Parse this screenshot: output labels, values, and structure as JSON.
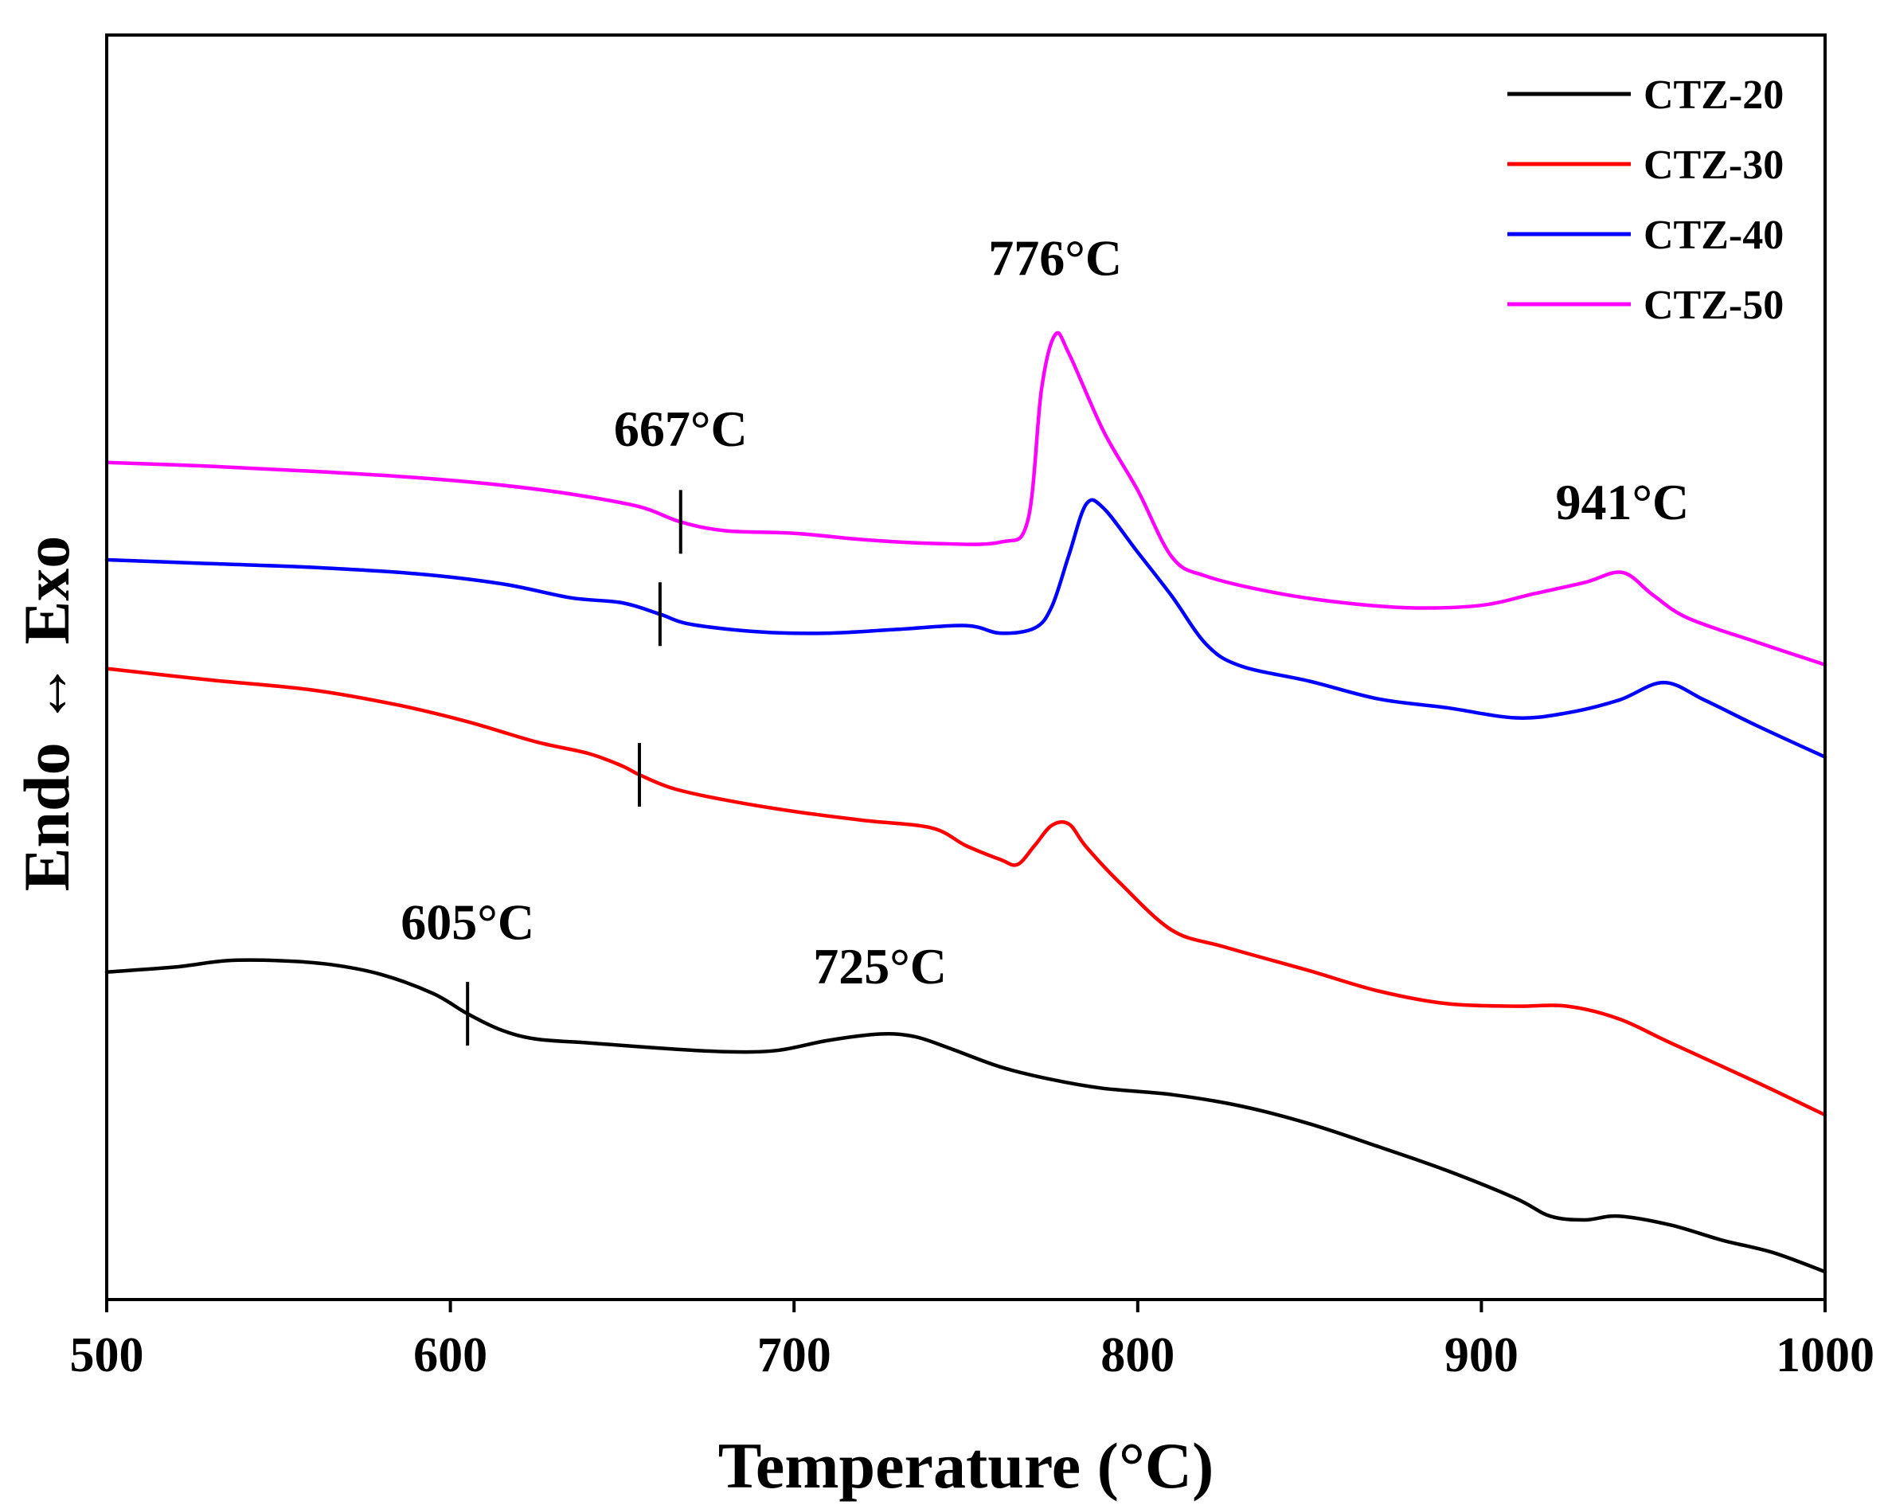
{
  "chart_data": {
    "type": "line",
    "title": "",
    "xlabel": "Temperature (°C)",
    "ylabel": "Endo ↔ Exo",
    "xlim": [
      500,
      1000
    ],
    "ylim": [
      0,
      100
    ],
    "xticks": [
      500,
      600,
      700,
      800,
      900,
      1000
    ],
    "xtick_labels": [
      "500",
      "600",
      "700",
      "800",
      "900",
      "1000"
    ],
    "yticks_visible": false,
    "grid": false,
    "legend_position": "top-right",
    "series": [
      {
        "name": "CTZ-20",
        "color": "#000000",
        "points": [
          [
            500,
            25.9
          ],
          [
            520,
            26.3
          ],
          [
            535,
            26.8
          ],
          [
            550,
            26.8
          ],
          [
            565,
            26.5
          ],
          [
            580,
            25.7
          ],
          [
            595,
            24.2
          ],
          [
            605,
            22.6
          ],
          [
            615,
            21.3
          ],
          [
            625,
            20.6
          ],
          [
            640,
            20.3
          ],
          [
            660,
            19.9
          ],
          [
            680,
            19.6
          ],
          [
            695,
            19.7
          ],
          [
            710,
            20.5
          ],
          [
            725,
            21.0
          ],
          [
            735,
            20.8
          ],
          [
            745,
            19.9
          ],
          [
            760,
            18.4
          ],
          [
            775,
            17.4
          ],
          [
            790,
            16.7
          ],
          [
            810,
            16.2
          ],
          [
            830,
            15.3
          ],
          [
            850,
            13.9
          ],
          [
            870,
            12.1
          ],
          [
            890,
            10.2
          ],
          [
            910,
            8.0
          ],
          [
            920,
            6.6
          ],
          [
            930,
            6.3
          ],
          [
            940,
            6.6
          ],
          [
            955,
            5.9
          ],
          [
            970,
            4.7
          ],
          [
            985,
            3.7
          ],
          [
            1000,
            2.2
          ]
        ]
      },
      {
        "name": "CTZ-30",
        "color": "#ff0000",
        "points": [
          [
            500,
            49.9
          ],
          [
            530,
            49.0
          ],
          [
            560,
            48.2
          ],
          [
            585,
            47.0
          ],
          [
            605,
            45.7
          ],
          [
            625,
            44.1
          ],
          [
            640,
            43.2
          ],
          [
            650,
            42.2
          ],
          [
            655,
            41.5
          ],
          [
            665,
            40.4
          ],
          [
            680,
            39.5
          ],
          [
            700,
            38.6
          ],
          [
            720,
            37.9
          ],
          [
            740,
            37.3
          ],
          [
            750,
            35.9
          ],
          [
            760,
            34.8
          ],
          [
            765,
            34.4
          ],
          [
            770,
            35.9
          ],
          [
            775,
            37.5
          ],
          [
            780,
            37.6
          ],
          [
            785,
            35.8
          ],
          [
            795,
            32.9
          ],
          [
            810,
            29.2
          ],
          [
            825,
            27.9
          ],
          [
            850,
            26.0
          ],
          [
            870,
            24.4
          ],
          [
            890,
            23.4
          ],
          [
            910,
            23.2
          ],
          [
            925,
            23.2
          ],
          [
            940,
            22.2
          ],
          [
            955,
            20.3
          ],
          [
            980,
            17.2
          ],
          [
            1000,
            14.6
          ]
        ]
      },
      {
        "name": "CTZ-40",
        "color": "#0000ff",
        "points": [
          [
            500,
            58.5
          ],
          [
            530,
            58.2
          ],
          [
            560,
            57.9
          ],
          [
            590,
            57.4
          ],
          [
            615,
            56.6
          ],
          [
            635,
            55.5
          ],
          [
            650,
            55.1
          ],
          [
            661,
            54.2
          ],
          [
            670,
            53.4
          ],
          [
            690,
            52.8
          ],
          [
            710,
            52.7
          ],
          [
            730,
            53.0
          ],
          [
            750,
            53.3
          ],
          [
            760,
            52.7
          ],
          [
            770,
            53.1
          ],
          [
            775,
            54.8
          ],
          [
            780,
            58.9
          ],
          [
            785,
            62.9
          ],
          [
            790,
            62.6
          ],
          [
            800,
            59.1
          ],
          [
            810,
            55.6
          ],
          [
            820,
            51.8
          ],
          [
            830,
            50.1
          ],
          [
            850,
            48.9
          ],
          [
            870,
            47.5
          ],
          [
            890,
            46.8
          ],
          [
            910,
            46.0
          ],
          [
            925,
            46.4
          ],
          [
            940,
            47.4
          ],
          [
            953,
            48.8
          ],
          [
            965,
            47.4
          ],
          [
            980,
            45.4
          ],
          [
            1000,
            42.9
          ]
        ]
      },
      {
        "name": "CTZ-50",
        "color": "#ff00ff",
        "points": [
          [
            500,
            66.2
          ],
          [
            530,
            65.9
          ],
          [
            560,
            65.5
          ],
          [
            590,
            65.0
          ],
          [
            615,
            64.4
          ],
          [
            635,
            63.7
          ],
          [
            655,
            62.7
          ],
          [
            667,
            61.5
          ],
          [
            680,
            60.8
          ],
          [
            700,
            60.6
          ],
          [
            720,
            60.1
          ],
          [
            740,
            59.8
          ],
          [
            760,
            59.9
          ],
          [
            768,
            61.6
          ],
          [
            772,
            72.0
          ],
          [
            776,
            76.3
          ],
          [
            780,
            74.8
          ],
          [
            790,
            68.7
          ],
          [
            800,
            64.0
          ],
          [
            810,
            58.7
          ],
          [
            820,
            57.2
          ],
          [
            840,
            55.9
          ],
          [
            860,
            55.1
          ],
          [
            880,
            54.7
          ],
          [
            900,
            54.9
          ],
          [
            915,
            55.8
          ],
          [
            930,
            56.7
          ],
          [
            941,
            57.5
          ],
          [
            950,
            55.7
          ],
          [
            960,
            53.9
          ],
          [
            980,
            52.0
          ],
          [
            1000,
            50.2
          ]
        ]
      }
    ],
    "annotations": [
      {
        "text": "776°C",
        "x": 776,
        "y": 81
      },
      {
        "text": "667°C",
        "x": 667,
        "y": 67.5
      },
      {
        "text": "941°C",
        "x": 941,
        "y": 61.7
      },
      {
        "text": "605°C",
        "x": 605,
        "y": 28.5
      },
      {
        "text": "725°C",
        "x": 725,
        "y": 25
      }
    ],
    "markers": [
      {
        "series": "CTZ-50",
        "x": 667,
        "y": 61.5
      },
      {
        "series": "CTZ-40",
        "x": 661,
        "y": 54.2
      },
      {
        "series": "CTZ-30",
        "x": 655,
        "y": 41.5
      },
      {
        "series": "CTZ-20",
        "x": 605,
        "y": 22.6
      }
    ]
  }
}
